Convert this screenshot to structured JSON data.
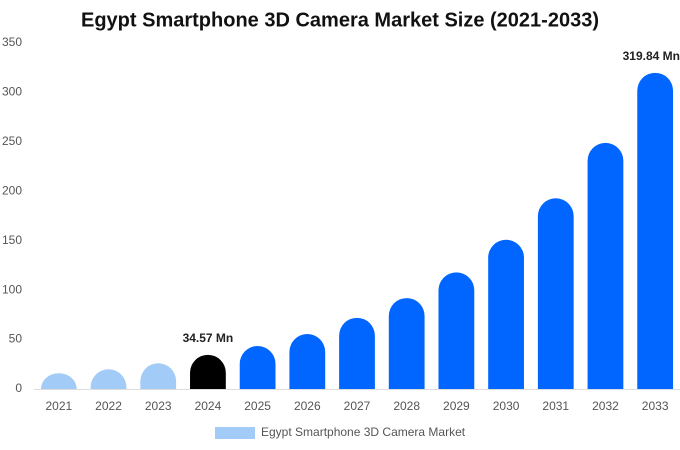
{
  "chart_data": {
    "type": "bar",
    "title": "Egypt Smartphone 3D Camera Market Size (2021-2033)",
    "categories": [
      "2021",
      "2022",
      "2023",
      "2024",
      "2025",
      "2026",
      "2027",
      "2028",
      "2029",
      "2030",
      "2031",
      "2032",
      "2033"
    ],
    "series": [
      {
        "name": "Egypt Smartphone 3D Camera Market",
        "color": "#a3cbf7",
        "colors": [
          "#a3cbf7",
          "#a3cbf7",
          "#a3cbf7",
          "#000000",
          "#0066ff",
          "#0066ff",
          "#0066ff",
          "#0066ff",
          "#0066ff",
          "#0066ff",
          "#0066ff",
          "#0066ff",
          "#0066ff"
        ],
        "values": [
          16,
          20,
          26,
          34.57,
          43.5,
          55.6,
          72,
          92,
          118,
          151,
          193,
          249,
          319.84
        ],
        "value_labels": [
          null,
          null,
          null,
          "34.57 Mn",
          null,
          null,
          null,
          null,
          null,
          null,
          null,
          null,
          "319.84 Mn"
        ]
      }
    ],
    "ylim": [
      0,
      350
    ],
    "yticks": [
      0,
      50,
      100,
      150,
      200,
      250,
      300,
      350
    ],
    "grid": false,
    "legend": "bottom"
  }
}
